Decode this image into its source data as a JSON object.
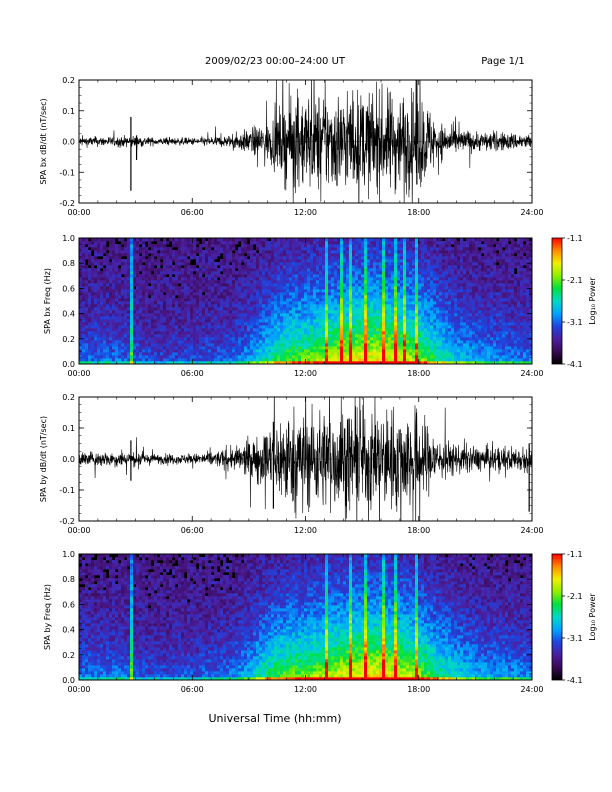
{
  "header": {
    "title": "2009/02/23  00:00–24:00 UT",
    "page": "Page 1/1"
  },
  "footer": {
    "xlabel": "Universal Time (hh:mm)"
  },
  "colors": {
    "trace": "#000000",
    "background": "#ffffff",
    "colormap": [
      "#000000",
      "#3a0a55",
      "#4b1e9e",
      "#1f44e0",
      "#00a4ff",
      "#00d8c8",
      "#00e040",
      "#8ef000",
      "#f0f000",
      "#ff8c00",
      "#ff0000"
    ]
  },
  "chart_data": [
    {
      "type": "line",
      "ylabel": "SPA bx dB/dt (nT/sec)",
      "xlim": [
        0,
        24
      ],
      "ylim": [
        -0.2,
        0.2
      ],
      "xticks": [
        "00:00",
        "06:00",
        "12:00",
        "18:00",
        "24:00"
      ],
      "yticks": [
        "0.2",
        "0.1",
        "0.0",
        "-0.1",
        "-0.2"
      ],
      "envelope": {
        "hours": [
          0,
          1,
          2,
          3,
          4,
          5,
          6,
          7,
          8,
          9,
          10,
          10.5,
          11,
          12,
          13,
          14,
          15,
          16,
          17,
          18,
          18.5,
          19,
          20,
          21,
          22,
          23,
          24
        ],
        "amplitude": [
          0.02,
          0.02,
          0.02,
          0.025,
          0.015,
          0.015,
          0.015,
          0.02,
          0.025,
          0.05,
          0.08,
          0.12,
          0.17,
          0.2,
          0.2,
          0.2,
          0.2,
          0.2,
          0.2,
          0.2,
          0.15,
          0.08,
          0.05,
          0.04,
          0.04,
          0.035,
          0.03
        ]
      },
      "spikes": [
        {
          "hour": 2.75,
          "min": -0.16,
          "max": 0.08
        },
        {
          "hour": 3.05,
          "min": -0.06,
          "max": 0.02
        },
        {
          "hour": 17.9,
          "min": -0.14,
          "max": 0.2
        }
      ]
    },
    {
      "type": "heatmap",
      "ylabel": "SPA bx Freq (Hz)",
      "xlim": [
        0,
        24
      ],
      "ylim": [
        0,
        1
      ],
      "xticks": [
        "00:00",
        "06:00",
        "12:00",
        "18:00",
        "24:00"
      ],
      "yticks": [
        "1.0",
        "0.8",
        "0.6",
        "0.4",
        "0.2",
        "0.0"
      ],
      "colorbar": {
        "label": "Log₁₀ Power",
        "ticks": [
          "-1.1",
          "-2.1",
          "-3.1",
          "-4.1"
        ],
        "range": [
          -4.1,
          -1.1
        ]
      },
      "activity": {
        "hours": [
          0,
          2,
          4,
          6,
          8,
          9,
          10,
          11,
          12,
          13,
          14,
          15,
          16,
          17,
          18,
          19,
          20,
          21,
          22,
          24
        ],
        "level": [
          0.3,
          0.3,
          0.2,
          0.22,
          0.28,
          0.4,
          0.6,
          0.75,
          0.8,
          0.85,
          0.95,
          1.0,
          1.0,
          0.95,
          0.85,
          0.65,
          0.5,
          0.42,
          0.38,
          0.32
        ]
      },
      "lines": [
        2.75,
        13.1,
        13.9,
        14.4,
        15.2,
        16.1,
        16.8,
        17.2,
        17.9
      ]
    },
    {
      "type": "line",
      "ylabel": "SPA by dB/dt (nT/sec)",
      "xlim": [
        0,
        24
      ],
      "ylim": [
        -0.2,
        0.2
      ],
      "xticks": [
        "00:00",
        "06:00",
        "12:00",
        "18:00",
        "24:00"
      ],
      "yticks": [
        "0.2",
        "0.1",
        "0.0",
        "-0.1",
        "-0.2"
      ],
      "envelope": {
        "hours": [
          0,
          1,
          2,
          3,
          4,
          5,
          6,
          7,
          8,
          9,
          10,
          10.5,
          11,
          12,
          13,
          14,
          15,
          16,
          17,
          18,
          18.5,
          19,
          20,
          21,
          22,
          23,
          24
        ],
        "amplitude": [
          0.03,
          0.03,
          0.03,
          0.03,
          0.02,
          0.02,
          0.02,
          0.03,
          0.04,
          0.07,
          0.12,
          0.17,
          0.19,
          0.2,
          0.2,
          0.2,
          0.2,
          0.2,
          0.2,
          0.2,
          0.14,
          0.09,
          0.06,
          0.05,
          0.05,
          0.05,
          0.05
        ]
      },
      "spikes": [
        {
          "hour": 2.75,
          "min": -0.07,
          "max": 0.06
        },
        {
          "hour": 10.3,
          "min": -0.16,
          "max": 0.12
        },
        {
          "hour": 23.85,
          "min": -0.17,
          "max": 0.05
        }
      ]
    },
    {
      "type": "heatmap",
      "ylabel": "SPA by Freq (Hz)",
      "xlim": [
        0,
        24
      ],
      "ylim": [
        0,
        1
      ],
      "xticks": [
        "00:00",
        "06:00",
        "12:00",
        "18:00",
        "24:00"
      ],
      "yticks": [
        "1.0",
        "0.8",
        "0.6",
        "0.4",
        "0.2",
        "0.0"
      ],
      "colorbar": {
        "label": "Log₁₀ Power",
        "ticks": [
          "-1.1",
          "-2.1",
          "-3.1",
          "-4.1"
        ],
        "range": [
          -4.1,
          -1.1
        ]
      },
      "activity": {
        "hours": [
          0,
          2,
          4,
          6,
          8,
          9,
          10,
          11,
          12,
          13,
          14,
          15,
          16,
          17,
          18,
          19,
          20,
          21,
          22,
          24
        ],
        "level": [
          0.3,
          0.32,
          0.22,
          0.25,
          0.32,
          0.45,
          0.68,
          0.78,
          0.82,
          0.88,
          0.95,
          1.0,
          1.0,
          0.95,
          0.85,
          0.68,
          0.55,
          0.45,
          0.4,
          0.35
        ]
      },
      "lines": [
        2.75,
        13.1,
        14.4,
        15.2,
        16.1,
        16.8,
        17.9
      ]
    }
  ]
}
